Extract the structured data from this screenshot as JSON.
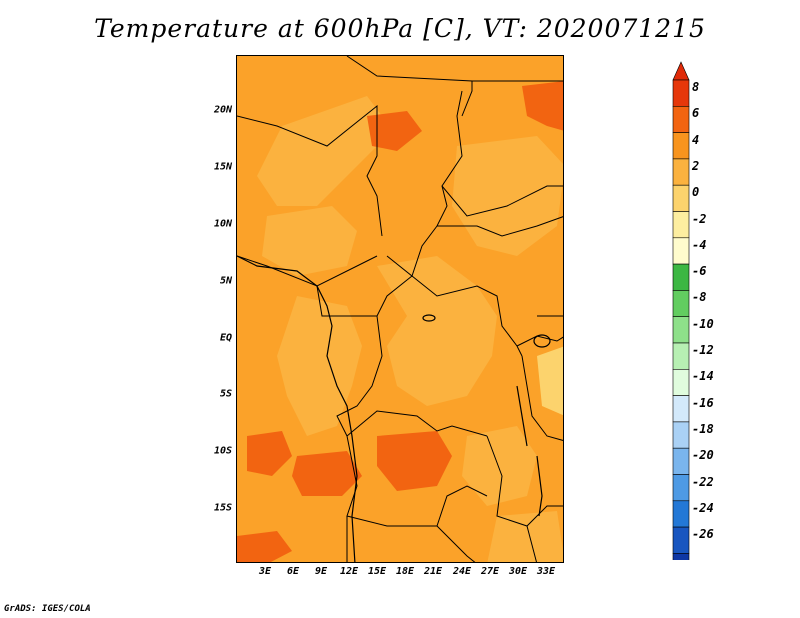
{
  "title": "Temperature at 600hPa [C], VT: 2020071215",
  "credit": "GrADS: IGES/COLA",
  "lat_labels": [
    "20N",
    "15N",
    "10N",
    "5N",
    "EQ",
    "5S",
    "10S",
    "15S"
  ],
  "lon_labels": [
    "3E",
    "6E",
    "9E",
    "12E",
    "15E",
    "18E",
    "21E",
    "24E",
    "27E",
    "30E",
    "33E"
  ],
  "colorbar": {
    "labels": [
      "8",
      "6",
      "4",
      "2",
      "0",
      "-2",
      "-4",
      "-6",
      "-8",
      "-10",
      "-12",
      "-14",
      "-16",
      "-18",
      "-20",
      "-22",
      "-24",
      "-26"
    ],
    "colors": [
      "#e6370a",
      "#f26411",
      "#f8941e",
      "#fbb23f",
      "#fcd36d",
      "#fdeea0",
      "#fffccd",
      "#3cb743",
      "#62cd60",
      "#8ee08a",
      "#b7f0b3",
      "#e0fcde",
      "#d3e9fb",
      "#aad1f5",
      "#7ab5ed",
      "#4e9ae4",
      "#2378d6",
      "#1856c0",
      "#0e37a5",
      "#081e7c"
    ],
    "top_triangle_color": "#e02a08",
    "bottom_triangle_color": "#e8e8f8"
  },
  "colors": {
    "base": "#fba229",
    "light": "#fbb23f",
    "warm": "#f8941e",
    "hot": "#f26411",
    "border": "#000000"
  }
}
